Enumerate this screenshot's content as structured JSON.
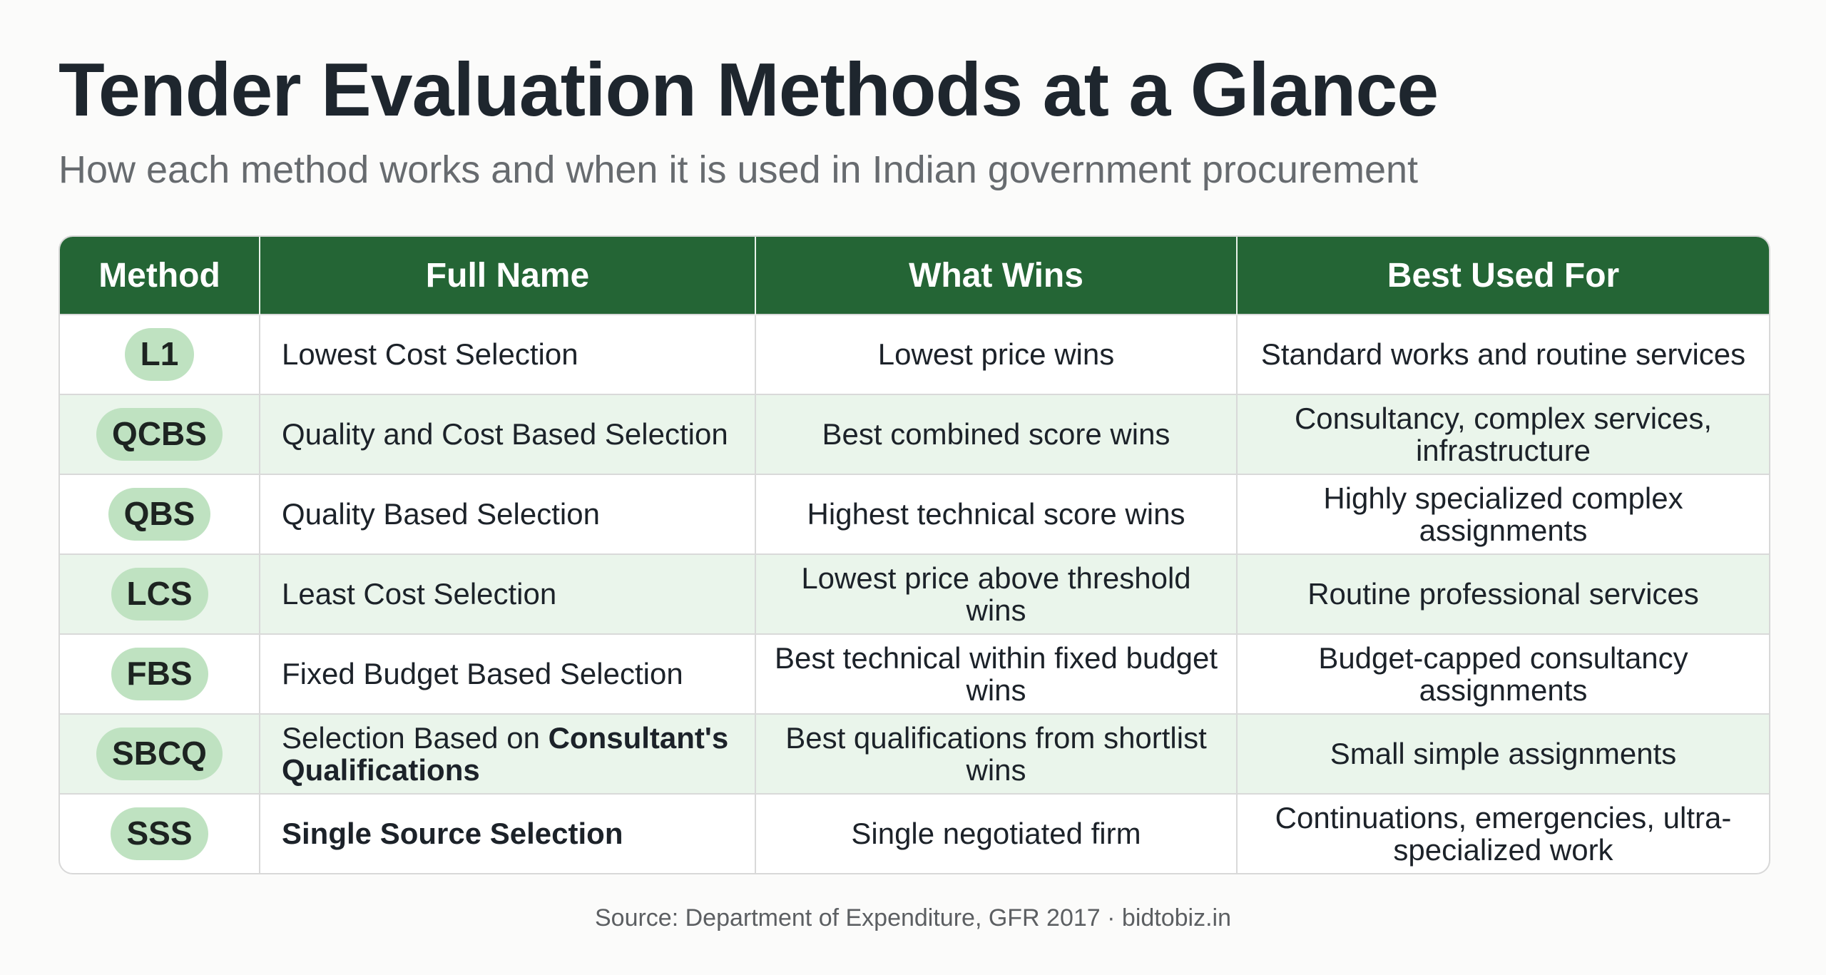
{
  "title": "Tender Evaluation Methods at a Glance",
  "subtitle": "How each method works and when it is used in Indian government procurement",
  "table": {
    "headers": [
      "Method",
      "Full Name",
      "What Wins",
      "Best Used For"
    ],
    "rows": [
      {
        "method": "L1",
        "full_name_parts": [
          "Lowest Cost Selection",
          ""
        ],
        "what_wins": "Lowest price wins",
        "best_used_for": "Standard works and routine services"
      },
      {
        "method": "QCBS",
        "full_name_parts": [
          "Quality and Cost Based Selection",
          ""
        ],
        "what_wins": "Best combined score wins",
        "best_used_for": "Consultancy, complex services, infrastructure"
      },
      {
        "method": "QBS",
        "full_name_parts": [
          "Quality Based Selection",
          ""
        ],
        "what_wins": "Highest technical score wins",
        "best_used_for": "Highly specialized complex assignments"
      },
      {
        "method": "LCS",
        "full_name_parts": [
          "Least Cost Selection",
          ""
        ],
        "what_wins": "Lowest price above threshold wins",
        "best_used_for": "Routine professional services"
      },
      {
        "method": "FBS",
        "full_name_parts": [
          "Fixed Budget Based Selection",
          ""
        ],
        "what_wins": "Best technical within fixed budget wins",
        "best_used_for": "Budget-capped consultancy assignments"
      },
      {
        "method": "SBCQ",
        "full_name_parts": [
          "Selection Based on ",
          "Consultant's Qualifications"
        ],
        "what_wins": "Best qualifications from shortlist wins",
        "best_used_for": "Small simple assignments"
      },
      {
        "method": "SSS",
        "full_name_parts": [
          "",
          "Single Source Selection"
        ],
        "what_wins": "Single negotiated firm",
        "best_used_for": "Continuations, emergencies, ultra-specialized work"
      }
    ]
  },
  "source": "Source: Department of Expenditure, GFR 2017 · bidtobiz.in",
  "colors": {
    "header_bg": "#246535",
    "pill_bg": "#bfe2c1",
    "stripe_bg": "#eaf5eb"
  }
}
